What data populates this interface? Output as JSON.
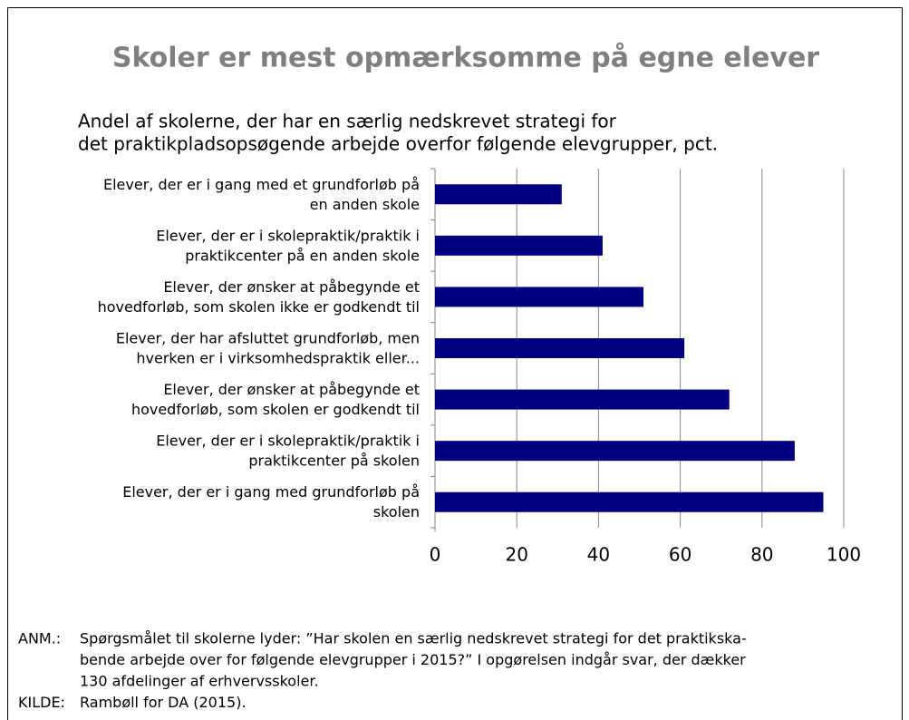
{
  "chart_data": {
    "type": "bar",
    "orientation": "horizontal",
    "title": "Skoler er mest opmærksomme på egne elever",
    "subtitle": [
      "Andel af skolerne, der har en særlig nedskrevet strategi for",
      "det praktikpladsopsøgende arbejde overfor følgende elevgrupper, pct."
    ],
    "categories": [
      [
        "Elever, der er i gang med et grundforløb på",
        "en anden skole"
      ],
      [
        "Elever, der er i skolepraktik/praktik i",
        "praktikcenter på en anden skole"
      ],
      [
        "Elever, der ønsker at påbegynde et",
        "hovedforløb, som skolen ikke er godkendt til"
      ],
      [
        "Elever, der har afsluttet grundforløb, men",
        "hverken er i virksomhedspraktik eller..."
      ],
      [
        "Elever, der ønsker at påbegynde et",
        "hovedforløb, som skolen er godkendt til"
      ],
      [
        "Elever, der er i skolepraktik/praktik i",
        "praktikcenter på skolen"
      ],
      [
        "Elever, der er i gang med grundforløb på",
        "skolen"
      ]
    ],
    "values": [
      31,
      41,
      51,
      61,
      72,
      88,
      95
    ],
    "color": "#000080",
    "xlim": [
      0,
      100
    ],
    "xticks": [
      0,
      20,
      40,
      60,
      80,
      100
    ],
    "grid": true
  },
  "notes": [
    {
      "label": "ANM.:",
      "lines": [
        "Spørgsmålet til skolerne lyder: ”Har skolen en særlig nedskrevet strategi for det praktikska-",
        "bende arbejde over for følgende elevgrupper i 2015?” I opgørelsen indgår svar, der dækker",
        "130 afdelinger af erhvervsskoler."
      ]
    },
    {
      "label": "KILDE:",
      "lines": [
        "Rambøll for DA (2015)."
      ]
    }
  ]
}
